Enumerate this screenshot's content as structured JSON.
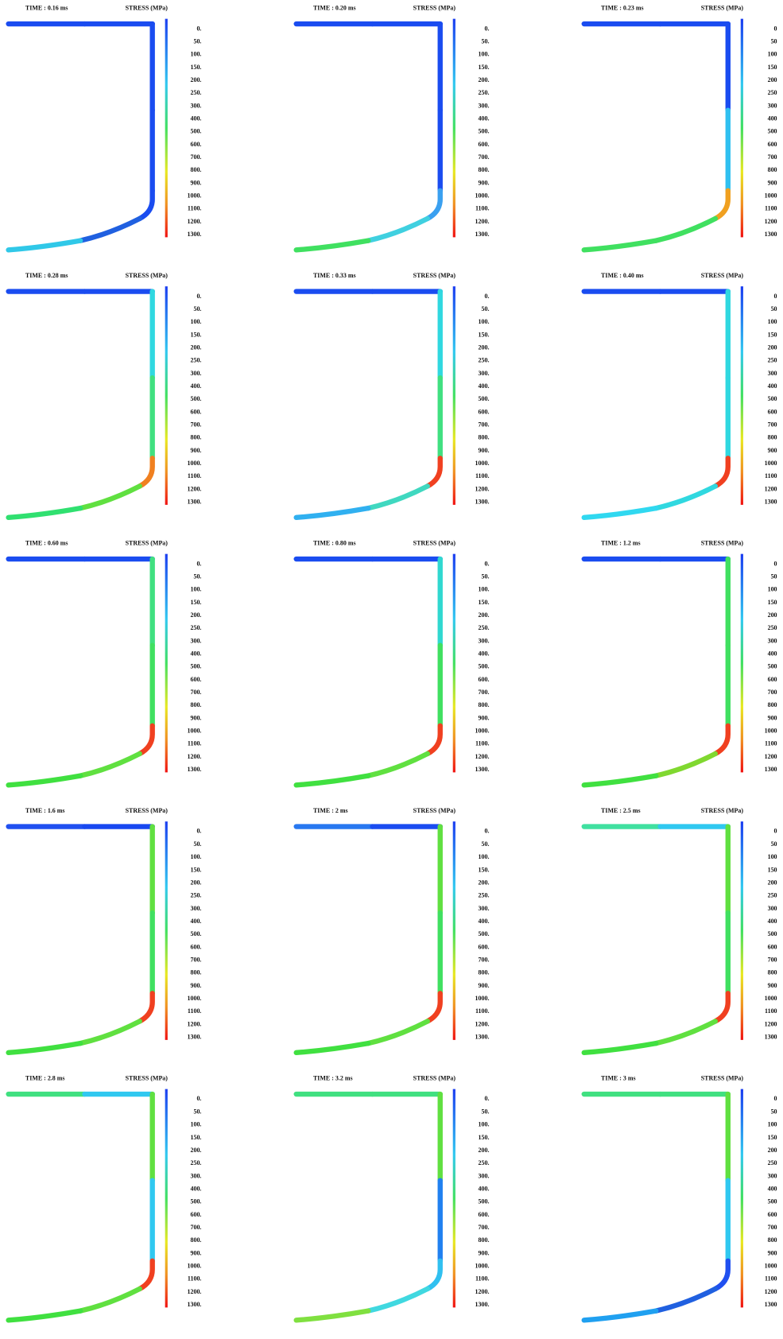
{
  "panels": [
    {
      "time": "TIME : 0.16 ms",
      "quantity": "STRESS (MPa)",
      "colorbar": [
        "0.",
        "50.",
        "100.",
        "150.",
        "200.",
        "250.",
        "300.",
        "400.",
        "500.",
        "600.",
        "700.",
        "800.",
        "900.",
        "1000.",
        "1100.",
        "1200.",
        "1300."
      ],
      "path_colors": [
        "#1a4cf0",
        "#1a4cf0",
        "#1a4cf0",
        "#1a4cf0",
        "#1a4cf0",
        "#2060e0",
        "#30c8e8"
      ]
    },
    {
      "time": "TIME : 0.20 ms",
      "quantity": "STRESS (MPa)",
      "colorbar": [
        "0.",
        "50.",
        "100.",
        "150.",
        "200.",
        "250.",
        "300.",
        "400.",
        "500.",
        "600.",
        "700.",
        "800.",
        "900.",
        "1000.",
        "1100.",
        "1200.",
        "1300."
      ],
      "path_colors": [
        "#1a4cf0",
        "#1a4cf0",
        "#1a4cf0",
        "#1a4cf0",
        "#3aa0f0",
        "#40d0e0",
        "#40e060"
      ]
    },
    {
      "time": "TIME : 0.23 ms",
      "quantity": "STRESS (MPa)",
      "colorbar": [
        "0",
        "50",
        "100",
        "150",
        "200",
        "250",
        "300",
        "400",
        "500",
        "600",
        "700",
        "800",
        "900",
        "1000",
        "1100",
        "1200",
        "1300"
      ],
      "path_colors": [
        "#1a4cf0",
        "#1a4cf0",
        "#1a4cf0",
        "#30c0f0",
        "#f0a020",
        "#40e060",
        "#40e060"
      ]
    },
    {
      "time": "TIME : 0.28 ms",
      "quantity": "STRESS (MPa)",
      "colorbar": [
        "0.",
        "50.",
        "100.",
        "150.",
        "200.",
        "250.",
        "300.",
        "400.",
        "500.",
        "600.",
        "700.",
        "800.",
        "900.",
        "1000.",
        "1100.",
        "1200.",
        "1300."
      ],
      "path_colors": [
        "#1a4cf0",
        "#1a4cf0",
        "#30d8e0",
        "#40e080",
        "#f08020",
        "#60e040",
        "#30e070"
      ]
    },
    {
      "time": "TIME : 0.33 ms",
      "quantity": "STRESS (MPa)",
      "colorbar": [
        "0.",
        "50.",
        "100.",
        "150.",
        "200.",
        "250.",
        "300.",
        "400.",
        "500.",
        "600.",
        "700.",
        "800.",
        "900.",
        "1000.",
        "1100.",
        "1200.",
        "1300."
      ],
      "path_colors": [
        "#1a4cf0",
        "#1a4cf0",
        "#30d8e0",
        "#40e080",
        "#f04020",
        "#40d8c0",
        "#30b0f0"
      ]
    },
    {
      "time": "TIME : 0.40 ms",
      "quantity": "STRESS (MPa)",
      "colorbar": [
        "0",
        "50",
        "100",
        "150",
        "200",
        "250",
        "300",
        "400",
        "500",
        "600",
        "700",
        "800",
        "900",
        "1000",
        "1100",
        "1200",
        "1300"
      ],
      "path_colors": [
        "#1a4cf0",
        "#1a4cf0",
        "#30d8e0",
        "#30d8e0",
        "#f04020",
        "#30d8e0",
        "#30d8f0"
      ]
    },
    {
      "time": "TIME : 0.60 ms",
      "quantity": "STRESS (MPa)",
      "colorbar": [
        "0.",
        "50.",
        "100.",
        "150.",
        "200.",
        "250.",
        "300.",
        "400.",
        "500.",
        "600.",
        "700.",
        "800.",
        "900.",
        "1000.",
        "1100.",
        "1200.",
        "1300."
      ],
      "path_colors": [
        "#1a4cf0",
        "#1a4cf0",
        "#40e080",
        "#40e060",
        "#f04020",
        "#60e040",
        "#40e040"
      ]
    },
    {
      "time": "TIME : 0.80 ms",
      "quantity": "STRESS (MPa)",
      "colorbar": [
        "0.",
        "50.",
        "100.",
        "150.",
        "200.",
        "250.",
        "300.",
        "400.",
        "500.",
        "600.",
        "700.",
        "800.",
        "900.",
        "1000.",
        "1100.",
        "1200.",
        "1300."
      ],
      "path_colors": [
        "#1a4cf0",
        "#1a4cf0",
        "#30d8d0",
        "#40e060",
        "#f04020",
        "#60e040",
        "#40e040"
      ]
    },
    {
      "time": "TIME : 1.2 ms",
      "quantity": "STRESS (MPa)",
      "colorbar": [
        "0",
        "50",
        "100",
        "150",
        "200",
        "250",
        "300",
        "400",
        "500",
        "600",
        "700",
        "800",
        "900",
        "1000",
        "1100",
        "1200",
        "1300"
      ],
      "path_colors": [
        "#1a4cf0",
        "#1a4cf0",
        "#40e060",
        "#40e060",
        "#f04020",
        "#80d830",
        "#40e040"
      ]
    },
    {
      "time": "TIME : 1.6 ms",
      "quantity": "STRESS (MPa)",
      "colorbar": [
        "0.",
        "50.",
        "100.",
        "150.",
        "200.",
        "250.",
        "300.",
        "400.",
        "500.",
        "600.",
        "700.",
        "800.",
        "900.",
        "1000.",
        "1100.",
        "1200.",
        "1300."
      ],
      "path_colors": [
        "#2050f0",
        "#1848f0",
        "#60e040",
        "#40e060",
        "#f04020",
        "#60e040",
        "#40e040"
      ]
    },
    {
      "time": "TIME : 2 ms",
      "quantity": "STRESS (MPa)",
      "colorbar": [
        "0.",
        "50.",
        "100.",
        "150.",
        "200.",
        "250.",
        "300.",
        "400.",
        "500.",
        "600.",
        "700.",
        "800.",
        "900.",
        "1000.",
        "1100.",
        "1200.",
        "1300."
      ],
      "path_colors": [
        "#2878f0",
        "#1a4cf0",
        "#60e040",
        "#40e060",
        "#f04020",
        "#60e040",
        "#40e040"
      ]
    },
    {
      "time": "TIME : 2.5 ms",
      "quantity": "STRESS (MPa)",
      "colorbar": [
        "0",
        "50",
        "100",
        "150",
        "200",
        "250",
        "300",
        "400",
        "500",
        "600",
        "700",
        "800",
        "900",
        "1000",
        "1100",
        "1200",
        "1300"
      ],
      "path_colors": [
        "#40e0a0",
        "#30c8f0",
        "#60e040",
        "#40e060",
        "#f04020",
        "#60e040",
        "#40e040"
      ]
    },
    {
      "time": "TIME : 2.8 ms",
      "quantity": "STRESS (MPa)",
      "colorbar": [
        "0.",
        "50.",
        "100.",
        "150.",
        "200.",
        "250.",
        "300.",
        "400.",
        "500.",
        "600.",
        "700.",
        "800.",
        "900.",
        "1000.",
        "1100.",
        "1200.",
        "1300."
      ],
      "path_colors": [
        "#40e080",
        "#30c8f0",
        "#60e040",
        "#30c8f0",
        "#f04020",
        "#60e040",
        "#40e040"
      ]
    },
    {
      "time": "TIME : 3.2 ms",
      "quantity": "STRESS (MPa)",
      "colorbar": [
        "0.",
        "50.",
        "100.",
        "150.",
        "200.",
        "250.",
        "300.",
        "400.",
        "500.",
        "600.",
        "700.",
        "800.",
        "900.",
        "1000.",
        "1100.",
        "1200.",
        "1300."
      ],
      "path_colors": [
        "#40e080",
        "#40e080",
        "#60e040",
        "#2080f0",
        "#30c0f0",
        "#40d8e0",
        "#80e040"
      ]
    },
    {
      "time": "TIME : 3 ms",
      "quantity": "STRESS (MPa)",
      "colorbar": [
        "0",
        "50",
        "100",
        "150",
        "200",
        "250",
        "300",
        "400",
        "500",
        "600",
        "700",
        "800",
        "900",
        "1000",
        "1100",
        "1200",
        "1300"
      ],
      "path_colors": [
        "#40e080",
        "#40e080",
        "#60e040",
        "#30c8f0",
        "#2050f0",
        "#2060e0",
        "#20a0f0"
      ]
    }
  ]
}
